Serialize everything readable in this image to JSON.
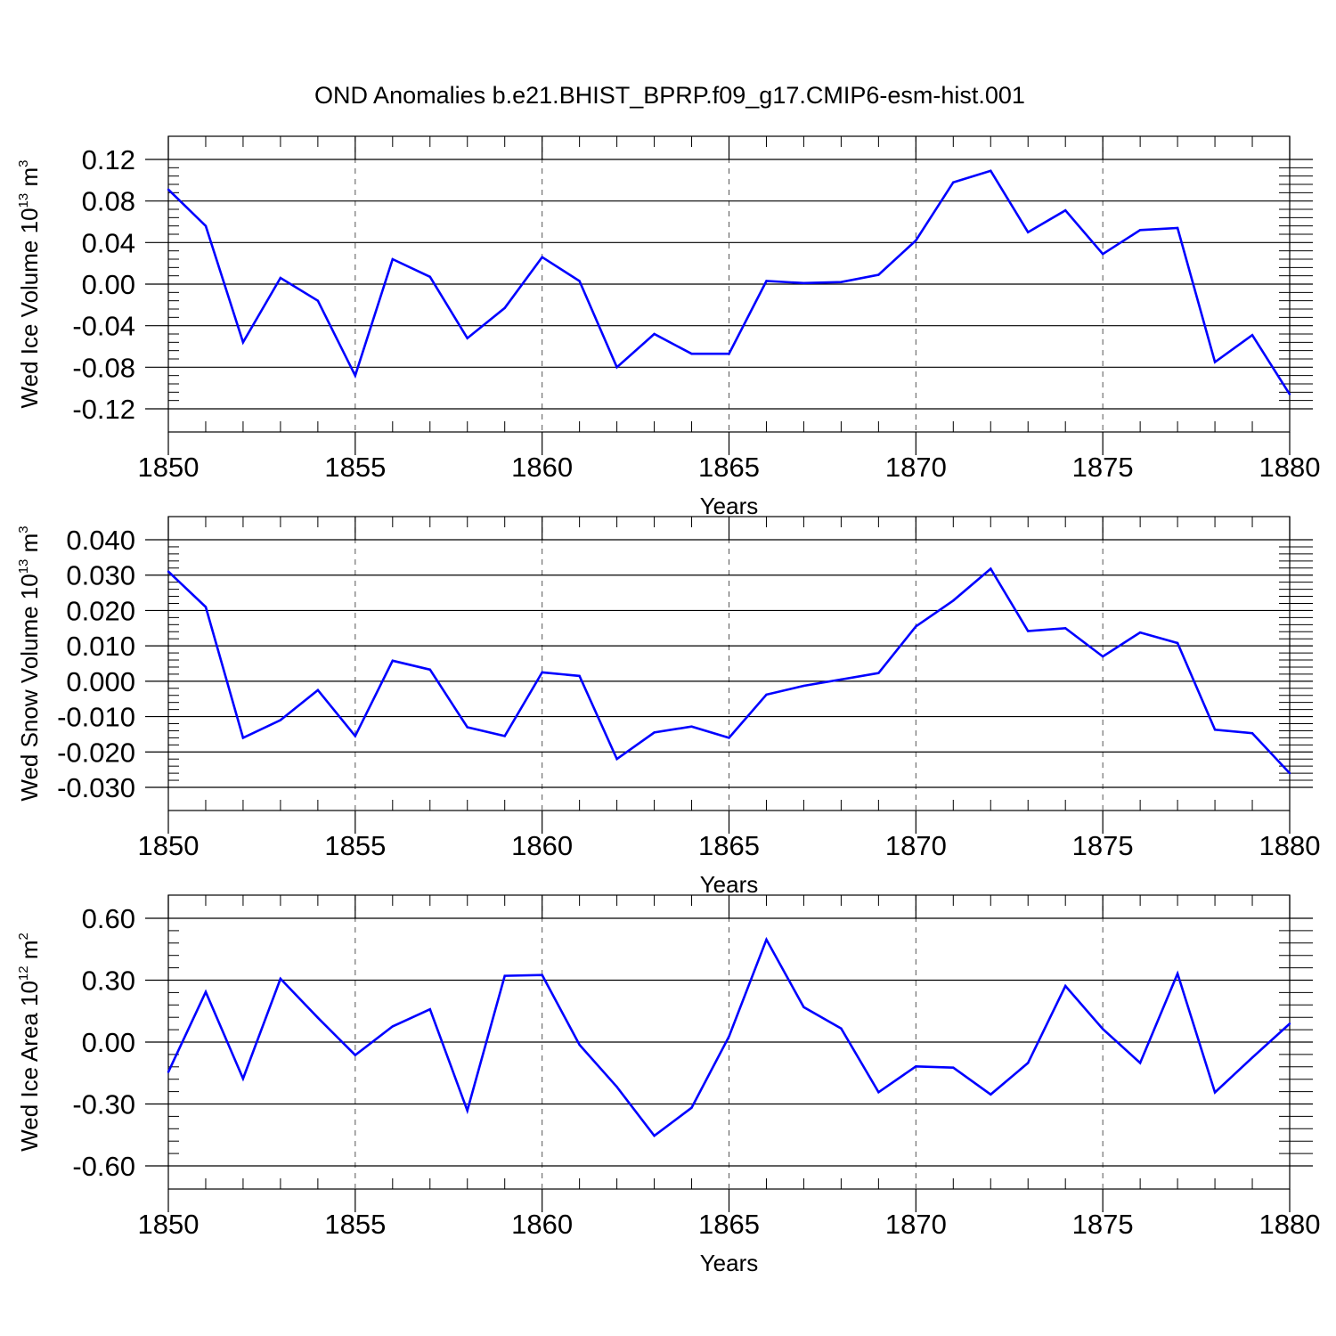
{
  "figure": {
    "title": "OND Anomalies b.e21.BHIST_BPRP.f09_g17.CMIP6-esm-hist.001",
    "line_color": "#0000ff"
  },
  "chart_data": [
    {
      "type": "line",
      "xlabel": "Years",
      "ylabel": {
        "text": "Wed Ice Volume 10",
        "sup": "13",
        "unit": " m",
        "unit_sup": "3"
      },
      "xlim": [
        1850,
        1880
      ],
      "ylim": [
        -0.12,
        0.144
      ],
      "xticks": [
        1850,
        1855,
        1860,
        1865,
        1870,
        1875,
        1880
      ],
      "xtick_labels": [
        "1850",
        "1855",
        "1860",
        "1865",
        "1870",
        "1875",
        "1880"
      ],
      "yticks": [
        -0.12,
        -0.08,
        -0.04,
        0.0,
        0.04,
        0.08,
        0.12
      ],
      "ytick_labels": [
        "-0.12",
        "-0.08",
        "-0.04",
        "0.00",
        "0.04",
        "0.08",
        "0.12"
      ],
      "grid": "dashed vertical at major x ticks",
      "x": [
        1850,
        1851,
        1852,
        1853,
        1854,
        1855,
        1856,
        1857,
        1858,
        1859,
        1860,
        1861,
        1862,
        1863,
        1864,
        1865,
        1866,
        1867,
        1868,
        1869,
        1870,
        1871,
        1872,
        1873,
        1874,
        1875,
        1876,
        1877,
        1878,
        1879,
        1880
      ],
      "series": [
        {
          "values": [
            0.091,
            0.056,
            -0.056,
            0.006,
            -0.016,
            -0.088,
            0.024,
            0.007,
            -0.052,
            -0.023,
            0.026,
            0.003,
            -0.08,
            -0.048,
            -0.067,
            -0.067,
            0.003,
            0.001,
            0.002,
            0.009,
            0.042,
            0.098,
            0.109,
            0.05,
            0.071,
            0.029,
            0.052,
            0.054,
            -0.075,
            -0.049,
            -0.106
          ]
        }
      ]
    },
    {
      "type": "line",
      "xlabel": "Years",
      "ylabel": {
        "text": "Wed Snow Volume 10",
        "sup": "13",
        "unit": " m",
        "unit_sup": "3"
      },
      "xlim": [
        1850,
        1880
      ],
      "ylim": [
        -0.03,
        0.04
      ],
      "xticks": [
        1850,
        1855,
        1860,
        1865,
        1870,
        1875,
        1880
      ],
      "xtick_labels": [
        "1850",
        "1855",
        "1860",
        "1865",
        "1870",
        "1875",
        "1880"
      ],
      "yticks": [
        -0.03,
        -0.02,
        -0.01,
        0.0,
        0.01,
        0.02,
        0.03,
        0.04
      ],
      "ytick_labels": [
        "-0.030",
        "-0.020",
        "-0.010",
        "0.000",
        "0.010",
        "0.020",
        "0.030",
        "0.040"
      ],
      "grid": "dashed vertical at major x ticks",
      "x": [
        1850,
        1851,
        1852,
        1853,
        1854,
        1855,
        1856,
        1857,
        1858,
        1859,
        1860,
        1861,
        1862,
        1863,
        1864,
        1865,
        1866,
        1867,
        1868,
        1869,
        1870,
        1871,
        1872,
        1873,
        1874,
        1875,
        1876,
        1877,
        1878,
        1879,
        1880
      ],
      "series": [
        {
          "values": [
            0.031,
            0.021,
            -0.016,
            -0.011,
            -0.0025,
            -0.0155,
            0.0058,
            0.0033,
            -0.013,
            -0.0155,
            0.0025,
            0.0015,
            -0.022,
            -0.0145,
            -0.0128,
            -0.016,
            -0.0038,
            -0.0013,
            0.0005,
            0.0023,
            0.0155,
            0.0228,
            0.0318,
            0.0142,
            0.015,
            0.007,
            0.0138,
            0.0108,
            -0.0137,
            -0.0147,
            -0.026
          ]
        }
      ]
    },
    {
      "type": "line",
      "xlabel": "Years",
      "ylabel": {
        "text": "Wed Ice Area 10",
        "sup": "12",
        "unit": " m",
        "unit_sup": "2"
      },
      "xlim": [
        1850,
        1880
      ],
      "ylim": [
        -0.6,
        0.6
      ],
      "xticks": [
        1850,
        1855,
        1860,
        1865,
        1870,
        1875,
        1880
      ],
      "xtick_labels": [
        "1850",
        "1855",
        "1860",
        "1865",
        "1870",
        "1875",
        "1880"
      ],
      "yticks": [
        -0.6,
        -0.3,
        0.0,
        0.3,
        0.6
      ],
      "ytick_labels": [
        "-0.60",
        "-0.30",
        "0.00",
        "0.30",
        "0.60"
      ],
      "grid": "dashed vertical at major x ticks",
      "x": [
        1850,
        1851,
        1852,
        1853,
        1854,
        1855,
        1856,
        1857,
        1858,
        1859,
        1860,
        1861,
        1862,
        1863,
        1864,
        1865,
        1866,
        1867,
        1868,
        1869,
        1870,
        1871,
        1872,
        1873,
        1874,
        1875,
        1876,
        1877,
        1878,
        1879,
        1880
      ],
      "series": [
        {
          "values": [
            -0.145,
            0.243,
            -0.177,
            0.307,
            0.118,
            -0.063,
            0.076,
            0.159,
            -0.332,
            0.321,
            0.325,
            -0.013,
            -0.217,
            -0.454,
            -0.318,
            0.027,
            0.497,
            0.169,
            0.066,
            -0.243,
            -0.118,
            -0.124,
            -0.254,
            -0.101,
            0.272,
            0.063,
            -0.101,
            0.332,
            -0.244,
            -0.075,
            0.089
          ]
        }
      ]
    }
  ]
}
